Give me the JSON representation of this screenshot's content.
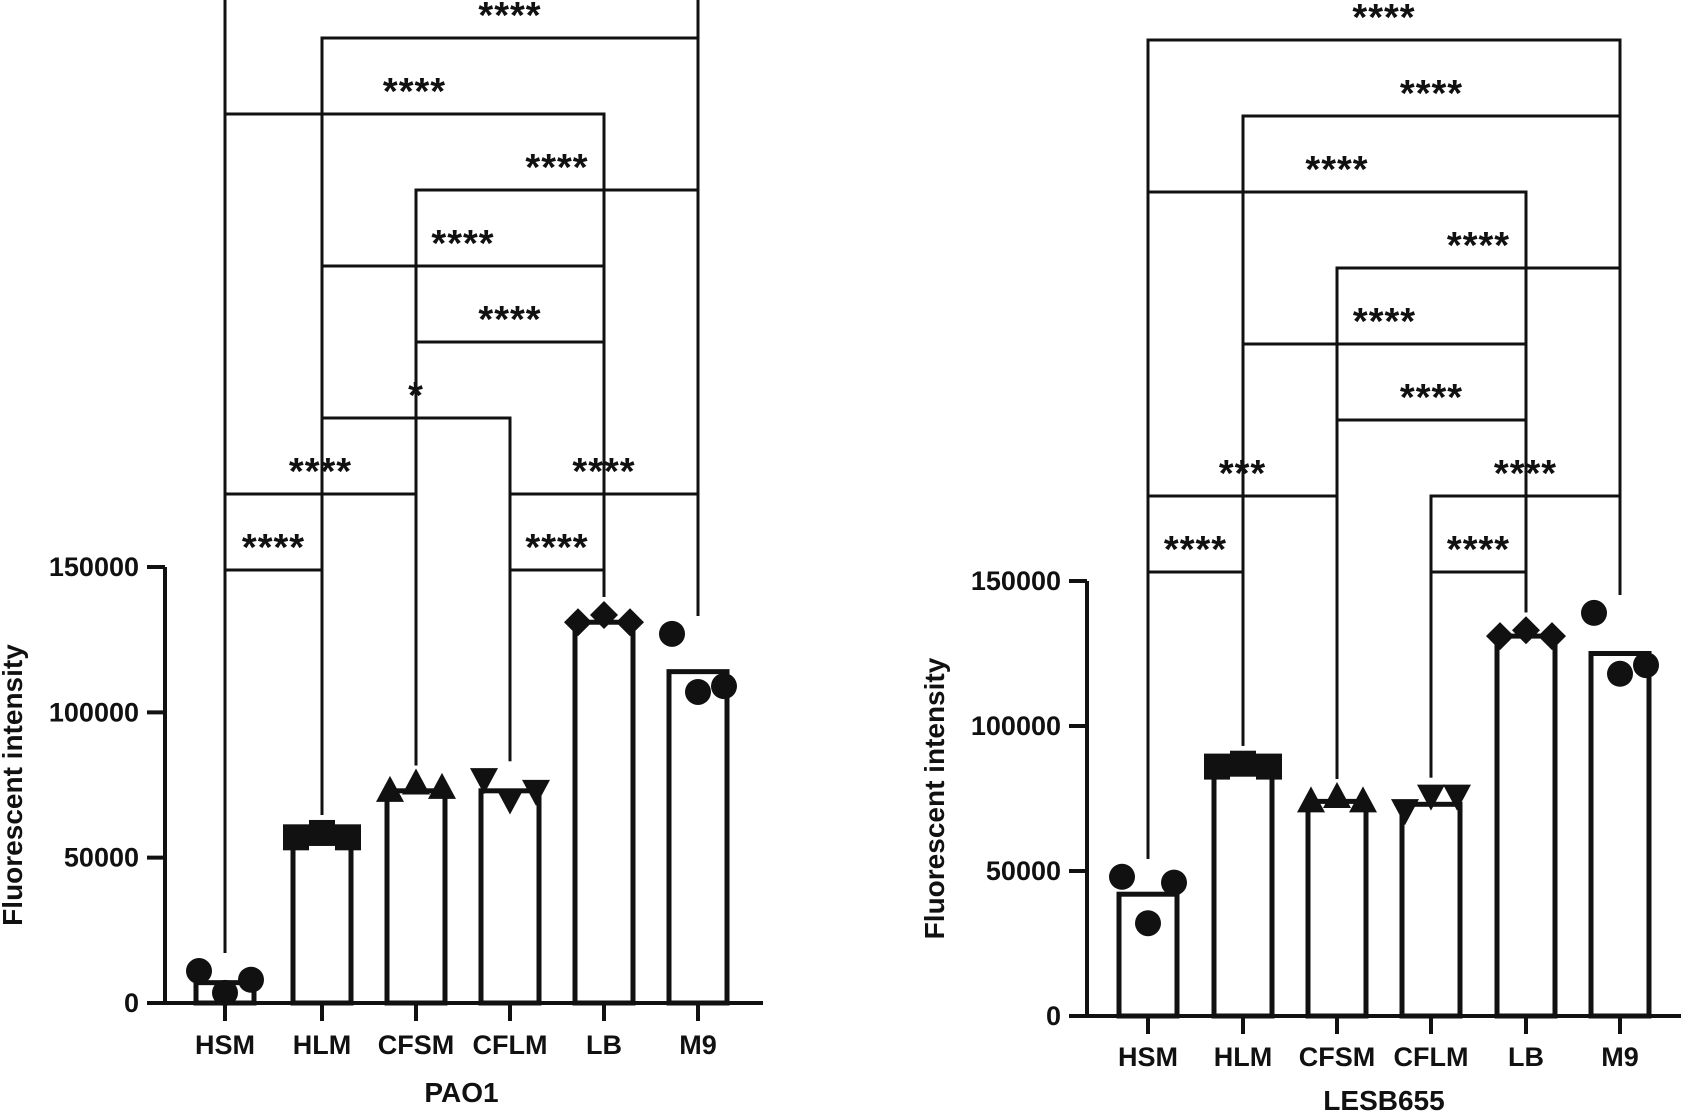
{
  "chart_data": [
    {
      "type": "bar",
      "xlabel": "PAO1",
      "ylabel": "Fluorescent intensity",
      "categories": [
        "HSM",
        "HLM",
        "CFSM",
        "CFLM",
        "LB",
        "M9"
      ],
      "values": [
        7000,
        57000,
        73000,
        73000,
        131000,
        114000
      ],
      "markers": [
        "circle",
        "square",
        "triangle",
        "triangle-down",
        "diamond",
        "circle"
      ],
      "points": [
        [
          11000,
          3500,
          8000
        ],
        [
          57000,
          58500,
          57000
        ],
        [
          73000,
          75500,
          74000
        ],
        [
          77000,
          70000,
          73000
        ],
        [
          131000,
          133500,
          131000
        ],
        [
          127000,
          107000,
          109000
        ]
      ],
      "ylim": [
        0,
        150000
      ],
      "yticks": [
        "0",
        "50000",
        "100000",
        "150000"
      ],
      "comparisons": [
        {
          "from": 0,
          "to": 1,
          "label": "****"
        },
        {
          "from": 1,
          "to": 3,
          "label": "*"
        },
        {
          "from": 3,
          "to": 4,
          "label": "****"
        },
        {
          "from": 0,
          "to": 2,
          "label": "****"
        },
        {
          "from": 2,
          "to": 4,
          "label": "****"
        },
        {
          "from": 3,
          "to": 5,
          "label": "****"
        },
        {
          "from": 1,
          "to": 4,
          "label": "****"
        },
        {
          "from": 2,
          "to": 5,
          "label": "****"
        },
        {
          "from": 0,
          "to": 4,
          "label": "****"
        },
        {
          "from": 1,
          "to": 5,
          "label": "****"
        },
        {
          "from": 0,
          "to": 5,
          "label": "****"
        }
      ]
    },
    {
      "type": "bar",
      "xlabel": "LESB655",
      "ylabel": "Fluorescent intensity",
      "categories": [
        "HSM",
        "HLM",
        "CFSM",
        "CFLM",
        "LB",
        "M9"
      ],
      "values": [
        42000,
        87000,
        74000,
        73000,
        131000,
        125000
      ],
      "markers": [
        "circle",
        "square",
        "triangle",
        "triangle-down",
        "diamond",
        "circle"
      ],
      "points": [
        [
          48000,
          32000,
          46000
        ],
        [
          86000,
          87000,
          86000
        ],
        [
          74000,
          75500,
          74000
        ],
        [
          71000,
          76000,
          76000
        ],
        [
          131000,
          133000,
          131000
        ],
        [
          139000,
          118000,
          121000
        ]
      ],
      "ylim": [
        0,
        150000
      ],
      "yticks": [
        "0",
        "50000",
        "100000",
        "150000"
      ],
      "comparisons": [
        {
          "from": 0,
          "to": 1,
          "label": "****"
        },
        {
          "from": 3,
          "to": 4,
          "label": "****"
        },
        {
          "from": 0,
          "to": 2,
          "label": "***"
        },
        {
          "from": 2,
          "to": 4,
          "label": "****"
        },
        {
          "from": 3,
          "to": 5,
          "label": "****"
        },
        {
          "from": 2,
          "to": 5,
          "label": "****"
        },
        {
          "from": 1,
          "to": 4,
          "label": "****"
        },
        {
          "from": 0,
          "to": 4,
          "label": "****"
        },
        {
          "from": 1,
          "to": 5,
          "label": "****"
        },
        {
          "from": 0,
          "to": 5,
          "label": "****"
        }
      ]
    }
  ]
}
